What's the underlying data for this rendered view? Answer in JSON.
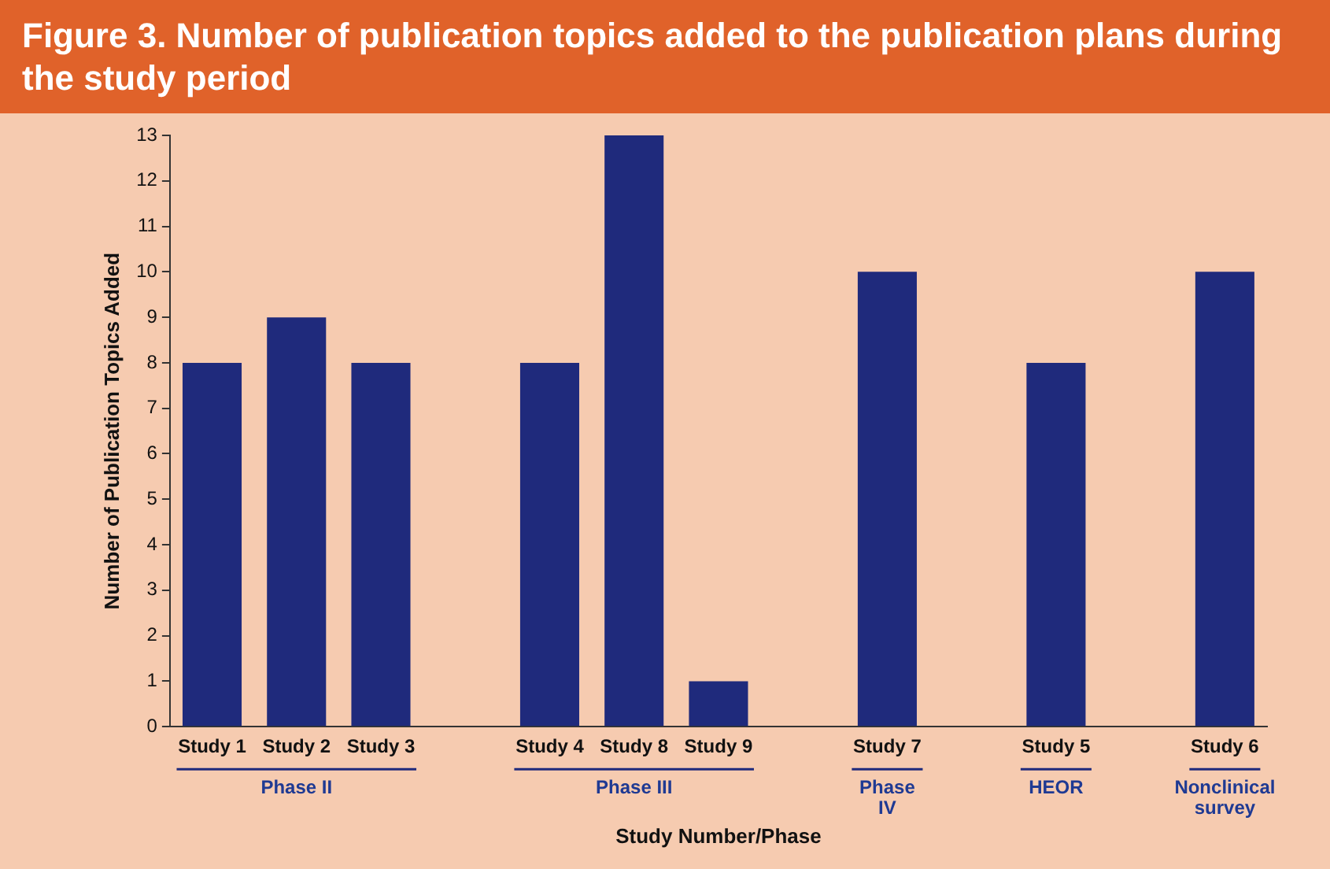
{
  "chart_data": {
    "type": "bar",
    "title": "Figure 3. Number of publication topics added to the publication plans during the study period",
    "xlabel": "Study Number/Phase",
    "ylabel": "Number of Publication Topics Added",
    "categories": [
      "Study 1",
      "Study 2",
      "Study 3",
      null,
      "Study 4",
      "Study 8",
      "Study 9",
      null,
      "Study 7",
      null,
      "Study 5",
      null,
      "Study 6"
    ],
    "values": [
      8,
      9,
      8,
      null,
      8,
      13,
      1,
      null,
      10,
      null,
      8,
      null,
      10
    ],
    "color": "#1f2a7c",
    "ylim": [
      0,
      13
    ],
    "yticks": [
      0,
      1,
      2,
      3,
      4,
      5,
      6,
      7,
      8,
      9,
      10,
      11,
      12,
      13
    ],
    "annotations": [
      "Phase II",
      "Phase III",
      "Phase IV",
      "HEOR",
      "Nonclinical survey"
    ]
  }
}
